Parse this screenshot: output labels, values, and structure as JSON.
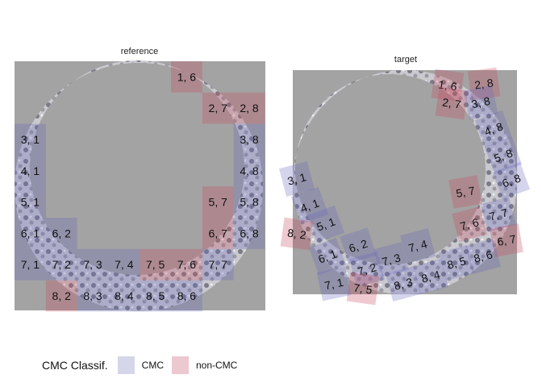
{
  "colors": {
    "CMC": "#d6d6ea",
    "non-CMC": "#ecc8d0",
    "panel_bg": "#a3a3a3"
  },
  "legend": {
    "title": "CMC Classif.",
    "items": [
      {
        "label": "CMC",
        "class": "CMC"
      },
      {
        "label": "non-CMC",
        "class": "non-CMC"
      }
    ]
  },
  "chart_data": [
    {
      "type": "heatmap",
      "title": "reference",
      "grid": "8x8 cells labelled row, col",
      "tiles": [
        {
          "label": "1, 6",
          "class": "non-CMC"
        },
        {
          "label": "2, 7",
          "class": "non-CMC"
        },
        {
          "label": "2, 8",
          "class": "non-CMC"
        },
        {
          "label": "3, 1",
          "class": "CMC"
        },
        {
          "label": "3, 8",
          "class": "CMC"
        },
        {
          "label": "4, 1",
          "class": "CMC"
        },
        {
          "label": "4, 8",
          "class": "CMC"
        },
        {
          "label": "5, 1",
          "class": "CMC"
        },
        {
          "label": "5, 7",
          "class": "non-CMC"
        },
        {
          "label": "5, 8",
          "class": "CMC"
        },
        {
          "label": "6, 1",
          "class": "CMC"
        },
        {
          "label": "6, 2",
          "class": "CMC"
        },
        {
          "label": "6, 7",
          "class": "non-CMC"
        },
        {
          "label": "6, 8",
          "class": "CMC"
        },
        {
          "label": "7, 1",
          "class": "CMC"
        },
        {
          "label": "7, 2",
          "class": "CMC"
        },
        {
          "label": "7, 3",
          "class": "CMC"
        },
        {
          "label": "7, 4",
          "class": "CMC"
        },
        {
          "label": "7, 5",
          "class": "non-CMC"
        },
        {
          "label": "7, 6",
          "class": "non-CMC"
        },
        {
          "label": "7, 7",
          "class": "CMC"
        },
        {
          "label": "8, 2",
          "class": "non-CMC"
        },
        {
          "label": "8, 3",
          "class": "CMC"
        },
        {
          "label": "8, 4",
          "class": "CMC"
        },
        {
          "label": "8, 5",
          "class": "CMC"
        },
        {
          "label": "8, 6",
          "class": "CMC"
        }
      ]
    },
    {
      "type": "heatmap",
      "title": "target",
      "tiles": [
        {
          "label": "1, 6",
          "class": "non-CMC"
        },
        {
          "label": "2, 7",
          "class": "non-CMC"
        },
        {
          "label": "2, 8",
          "class": "non-CMC"
        },
        {
          "label": "3, 8",
          "class": "CMC"
        },
        {
          "label": "4, 8",
          "class": "CMC"
        },
        {
          "label": "5, 8",
          "class": "CMC"
        },
        {
          "label": "6, 8",
          "class": "CMC"
        },
        {
          "label": "5, 7",
          "class": "non-CMC"
        },
        {
          "label": "7, 7",
          "class": "CMC"
        },
        {
          "label": "7, 6",
          "class": "non-CMC"
        },
        {
          "label": "6, 7",
          "class": "non-CMC"
        },
        {
          "label": "8, 6",
          "class": "CMC"
        },
        {
          "label": "8, 5",
          "class": "CMC"
        },
        {
          "label": "8, 4",
          "class": "CMC"
        },
        {
          "label": "8, 3",
          "class": "CMC"
        },
        {
          "label": "7, 4",
          "class": "CMC"
        },
        {
          "label": "7, 3",
          "class": "CMC"
        },
        {
          "label": "7, 2",
          "class": "CMC"
        },
        {
          "label": "7, 5",
          "class": "non-CMC"
        },
        {
          "label": "7, 1",
          "class": "CMC"
        },
        {
          "label": "6, 1",
          "class": "CMC"
        },
        {
          "label": "6, 2",
          "class": "CMC"
        },
        {
          "label": "5, 1",
          "class": "CMC"
        },
        {
          "label": "8, 2",
          "class": "non-CMC"
        },
        {
          "label": "4, 1",
          "class": "CMC"
        },
        {
          "label": "3, 1",
          "class": "CMC"
        }
      ]
    }
  ]
}
